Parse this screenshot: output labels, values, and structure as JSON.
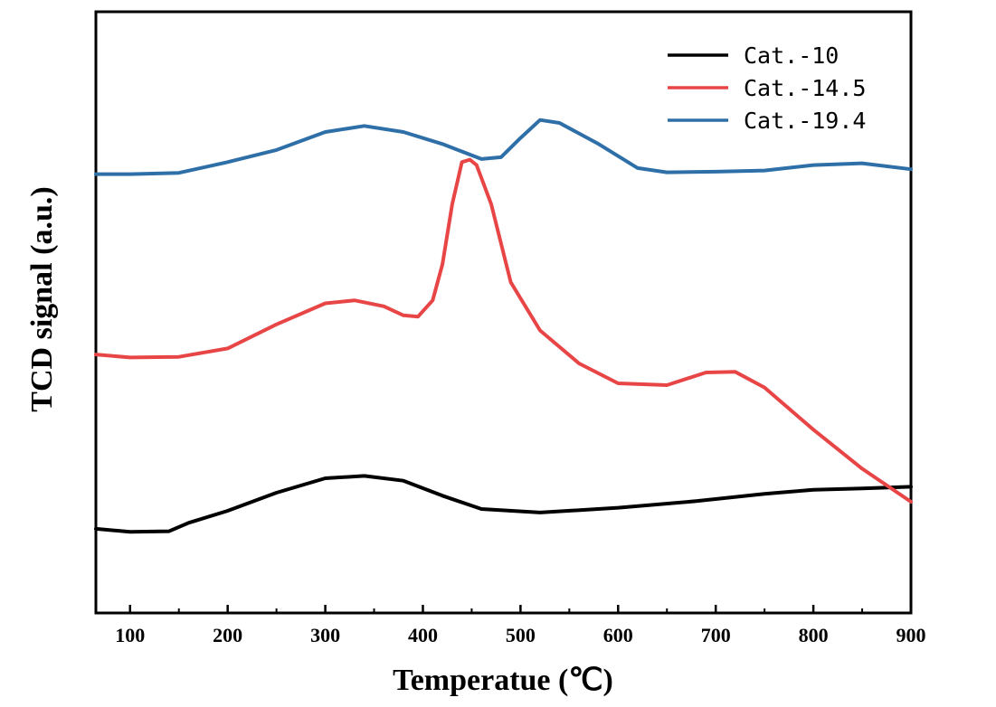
{
  "chart_data": {
    "type": "line",
    "title": "",
    "xlabel": "Temperatue (℃)",
    "ylabel": "TCD signal (a.u.)",
    "xlim": [
      65,
      900
    ],
    "ylim": [
      0,
      100
    ],
    "xticks": [
      100,
      200,
      300,
      400,
      500,
      600,
      700,
      800,
      900
    ],
    "yticks_shown": false,
    "grid": false,
    "legend_position": "top-right",
    "series": [
      {
        "name": "Cat.-10",
        "color": "#000000",
        "x": [
          65,
          100,
          140,
          160,
          200,
          250,
          300,
          340,
          380,
          420,
          460,
          520,
          600,
          680,
          750,
          800,
          850,
          900
        ],
        "y": [
          14.0,
          13.5,
          13.6,
          15.0,
          17.0,
          20.0,
          22.4,
          22.8,
          22.0,
          19.5,
          17.3,
          16.7,
          17.5,
          18.6,
          19.8,
          20.5,
          20.7,
          21.0
        ]
      },
      {
        "name": "Cat.-14.5",
        "color": "#e84646",
        "x": [
          65,
          100,
          150,
          200,
          250,
          300,
          330,
          360,
          380,
          395,
          410,
          420,
          430,
          440,
          448,
          455,
          470,
          490,
          520,
          560,
          600,
          650,
          690,
          720,
          750,
          800,
          850,
          900
        ],
        "y": [
          43.0,
          42.5,
          42.6,
          44.0,
          48.0,
          51.5,
          52.0,
          51.0,
          49.5,
          49.3,
          52.0,
          58.0,
          68.0,
          75.0,
          75.4,
          74.5,
          68.0,
          55.0,
          47.0,
          41.5,
          38.2,
          37.9,
          40.0,
          40.1,
          37.5,
          30.5,
          24.0,
          18.5
        ]
      },
      {
        "name": "Cat.-19.4",
        "color": "#2e6fa8",
        "x": [
          65,
          100,
          150,
          200,
          250,
          300,
          340,
          380,
          420,
          460,
          480,
          500,
          520,
          540,
          580,
          620,
          650,
          700,
          750,
          800,
          850,
          900
        ],
        "y": [
          73.0,
          73.0,
          73.2,
          75.0,
          77.0,
          80.0,
          81.0,
          80.0,
          78.0,
          75.5,
          75.8,
          79.0,
          82.0,
          81.5,
          78.0,
          74.0,
          73.3,
          73.4,
          73.6,
          74.5,
          74.8,
          73.8
        ]
      }
    ]
  },
  "legend": {
    "items": [
      {
        "label": "Cat.-10",
        "color": "#000000"
      },
      {
        "label": "Cat.-14.5",
        "color": "#e84646"
      },
      {
        "label": "Cat.-19.4",
        "color": "#2e6fa8"
      }
    ]
  }
}
